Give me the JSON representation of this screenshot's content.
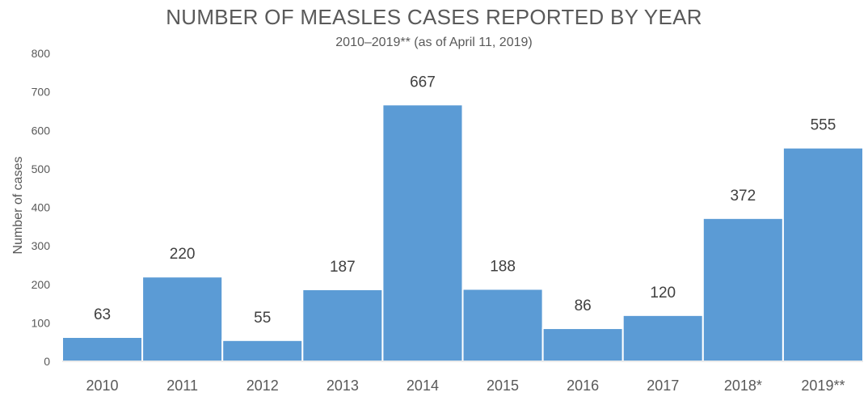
{
  "chart_data": {
    "type": "bar",
    "title": "NUMBER OF MEASLES CASES REPORTED BY YEAR",
    "subtitle": "2010–2019** (as of April 11, 2019)",
    "xlabel": "",
    "ylabel": "Number of cases",
    "categories": [
      "2010",
      "2011",
      "2012",
      "2013",
      "2014",
      "2015",
      "2016",
      "2017",
      "2018*",
      "2019**"
    ],
    "values": [
      63,
      220,
      55,
      187,
      667,
      188,
      86,
      120,
      372,
      555
    ],
    "data_labels": [
      "63",
      "220",
      "55",
      "187",
      "667",
      "188",
      "86",
      "120",
      "372",
      "555"
    ],
    "ylim": [
      0,
      800
    ],
    "yticks": [
      "0",
      "100",
      "200",
      "300",
      "400",
      "500",
      "600",
      "700",
      "800"
    ],
    "grid": false,
    "legend": "none",
    "bar_color": "#5b9bd5",
    "text_color": "#595959"
  }
}
